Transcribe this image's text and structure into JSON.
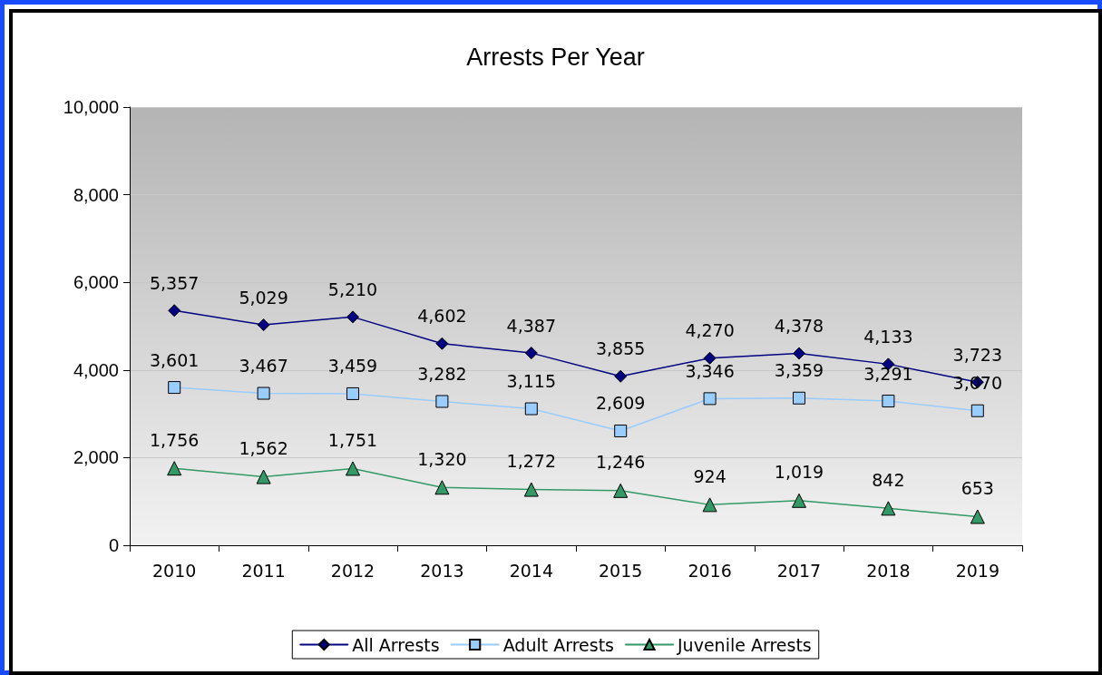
{
  "chart_data": {
    "type": "line",
    "title": "Arrests Per Year",
    "categories": [
      "2010",
      "2011",
      "2012",
      "2013",
      "2014",
      "2015",
      "2016",
      "2017",
      "2018",
      "2019"
    ],
    "series": [
      {
        "name": "All Arrests",
        "color": "#000080",
        "marker": "diamond",
        "values": [
          5357,
          5029,
          5210,
          4602,
          4387,
          3855,
          4270,
          4378,
          4133,
          3723
        ],
        "value_labels": [
          "5,357",
          "5,029",
          "5,210",
          "4,602",
          "4,387",
          "3,855",
          "4,270",
          "4,378",
          "4,133",
          "3,723"
        ]
      },
      {
        "name": "Adult Arrests",
        "color": "#99ccff",
        "marker": "square",
        "values": [
          3601,
          3467,
          3459,
          3282,
          3115,
          2609,
          3346,
          3359,
          3291,
          3070
        ],
        "value_labels": [
          "3,601",
          "3,467",
          "3,459",
          "3,282",
          "3,115",
          "2,609",
          "3,346",
          "3,359",
          "3,291",
          "3,070"
        ]
      },
      {
        "name": "Juvenile Arrests",
        "color": "#339966",
        "marker": "triangle",
        "values": [
          1756,
          1562,
          1751,
          1320,
          1272,
          1246,
          924,
          1019,
          842,
          653
        ],
        "value_labels": [
          "1,756",
          "1,562",
          "1,751",
          "1,320",
          "1,272",
          "1,246",
          "924",
          "1,019",
          "842",
          "653"
        ]
      }
    ],
    "ylim": [
      0,
      10000
    ],
    "yticks": [
      0,
      {
        "value": 2000,
        "label": "2,000"
      },
      {
        "value": 4000,
        "label": "4,000"
      },
      {
        "value": 6000,
        "label": "6,000"
      },
      {
        "value": 8000,
        "label": "8,000"
      },
      {
        "value": 10000,
        "label": "10,000"
      }
    ],
    "grid": "y",
    "legend": "bottom",
    "line_style": "solid"
  }
}
